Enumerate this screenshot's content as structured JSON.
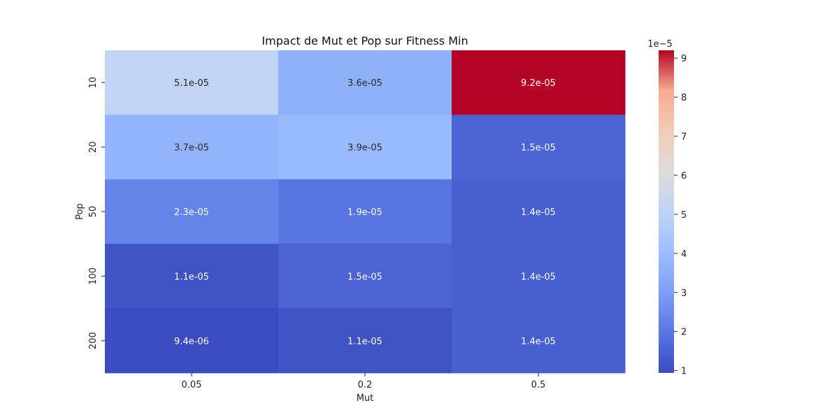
{
  "chart_data": {
    "type": "heatmap",
    "title": "Impact de Mut et Pop sur Fitness Min",
    "xlabel": "Mut",
    "ylabel": "Pop",
    "x_categories": [
      "0.05",
      "0.2",
      "0.5"
    ],
    "y_categories": [
      "10",
      "20",
      "50",
      "100",
      "200"
    ],
    "values": [
      [
        5.1e-05,
        3.6e-05,
        9.2e-05
      ],
      [
        3.7e-05,
        3.9e-05,
        1.5e-05
      ],
      [
        2.3e-05,
        1.9e-05,
        1.4e-05
      ],
      [
        1.1e-05,
        1.5e-05,
        1.4e-05
      ],
      [
        9.4e-06,
        1.1e-05,
        1.4e-05
      ]
    ],
    "cell_labels": [
      [
        "5.1e-05",
        "3.6e-05",
        "9.2e-05"
      ],
      [
        "3.7e-05",
        "3.9e-05",
        "1.5e-05"
      ],
      [
        "2.3e-05",
        "1.9e-05",
        "1.4e-05"
      ],
      [
        "1.1e-05",
        "1.5e-05",
        "1.4e-05"
      ],
      [
        "9.4e-06",
        "1.1e-05",
        "1.4e-05"
      ]
    ],
    "colormap": "coolwarm",
    "colorbar": {
      "min": 9.4e-06,
      "max": 9.2e-05,
      "scale_label": "1e−5",
      "ticks": [
        1,
        2,
        3,
        4,
        5,
        6,
        7,
        8,
        9
      ],
      "tick_multiplier": 1e-05
    }
  }
}
